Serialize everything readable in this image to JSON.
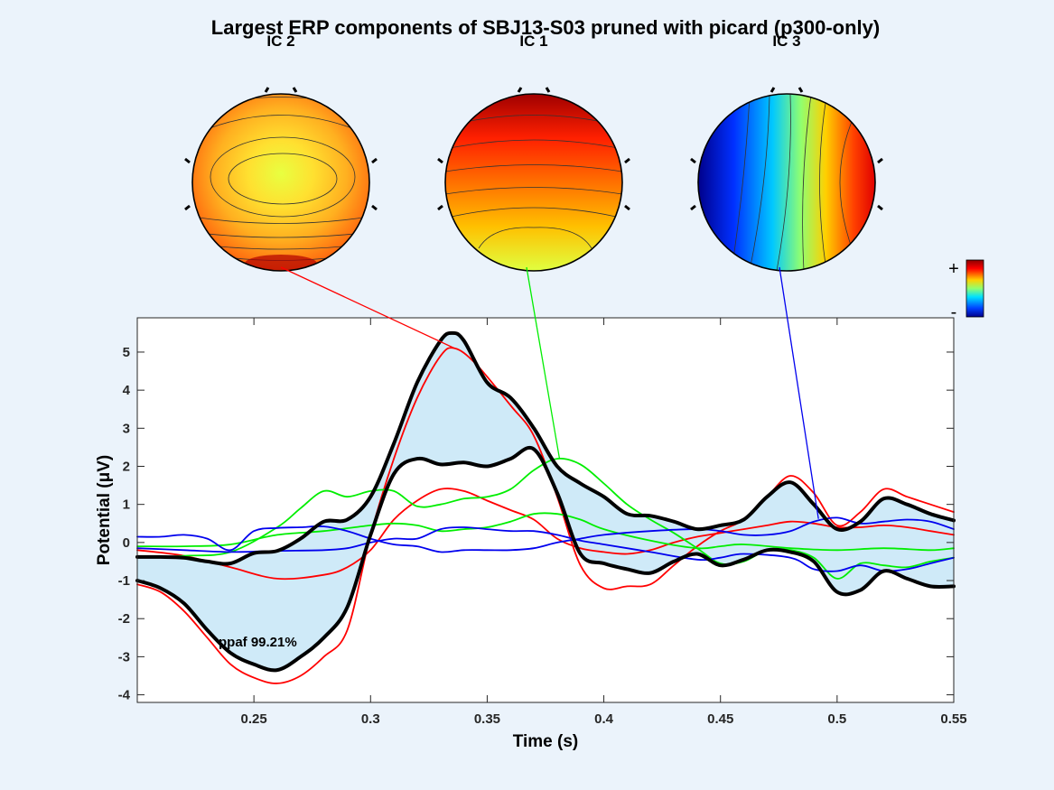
{
  "chart_data": {
    "type": "line",
    "title": "Largest ERP components of SBJ13-S03 pruned with picard (p300-only)",
    "xlabel": "Time (s)",
    "ylabel": "Potential (μV)",
    "xlim": [
      0.2,
      0.55
    ],
    "ylim": [
      -4.2,
      5.9
    ],
    "x_ticks": [
      0.25,
      0.3,
      0.35,
      0.4,
      0.45,
      0.5,
      0.55
    ],
    "y_ticks": [
      -4,
      -3,
      -2,
      -1,
      0,
      1,
      2,
      3,
      4,
      5
    ],
    "grid": false,
    "annotation": "ppaf 99.21%",
    "colorbar_labels": {
      "plus": "+",
      "minus": "-"
    },
    "components": [
      {
        "label": "IC 2",
        "color": "#ff0000",
        "topo": "frontal-warm",
        "link_to": [
          0.336,
          5.1
        ]
      },
      {
        "label": "IC 1",
        "color": "#00ee00",
        "topo": "frontal-red-posterior-yellow",
        "link_to": [
          0.381,
          2.2
        ]
      },
      {
        "label": "IC 3",
        "color": "#0000ee",
        "topo": "left-blue-right-red",
        "link_to": [
          0.492,
          0.62
        ]
      }
    ],
    "series": [
      {
        "role": "envelope-upper",
        "color": "#000000",
        "x": [
          0.2,
          0.21,
          0.22,
          0.23,
          0.24,
          0.25,
          0.26,
          0.27,
          0.28,
          0.29,
          0.3,
          0.31,
          0.32,
          0.33,
          0.335,
          0.34,
          0.35,
          0.36,
          0.37,
          0.38,
          0.39,
          0.4,
          0.41,
          0.42,
          0.43,
          0.44,
          0.45,
          0.46,
          0.47,
          0.48,
          0.49,
          0.5,
          0.51,
          0.52,
          0.53,
          0.54,
          0.55
        ],
        "values": [
          -0.38,
          -0.38,
          -0.4,
          -0.5,
          -0.55,
          -0.28,
          -0.22,
          0.1,
          0.55,
          0.6,
          1.2,
          2.6,
          4.2,
          5.3,
          5.5,
          5.3,
          4.2,
          3.8,
          3.0,
          2.0,
          1.55,
          1.2,
          0.75,
          0.7,
          0.55,
          0.35,
          0.45,
          0.6,
          1.2,
          1.58,
          1.0,
          0.35,
          0.55,
          1.15,
          1.0,
          0.75,
          0.58
        ]
      },
      {
        "role": "envelope-lower",
        "color": "#000000",
        "x": [
          0.2,
          0.21,
          0.22,
          0.23,
          0.24,
          0.25,
          0.26,
          0.27,
          0.28,
          0.29,
          0.3,
          0.31,
          0.32,
          0.33,
          0.34,
          0.35,
          0.36,
          0.37,
          0.38,
          0.39,
          0.4,
          0.41,
          0.42,
          0.43,
          0.44,
          0.45,
          0.46,
          0.47,
          0.48,
          0.49,
          0.5,
          0.51,
          0.52,
          0.53,
          0.54,
          0.55
        ],
        "values": [
          -1.0,
          -1.2,
          -1.6,
          -2.3,
          -2.9,
          -3.2,
          -3.35,
          -3.0,
          -2.5,
          -1.7,
          0.2,
          1.8,
          2.2,
          2.05,
          2.1,
          2.0,
          2.2,
          2.45,
          1.3,
          -0.3,
          -0.55,
          -0.7,
          -0.8,
          -0.5,
          -0.3,
          -0.6,
          -0.45,
          -0.2,
          -0.25,
          -0.5,
          -1.3,
          -1.25,
          -0.75,
          -0.95,
          -1.15,
          -1.15
        ]
      },
      {
        "name": "IC 2",
        "color": "#ff0000",
        "x": [
          0.2,
          0.21,
          0.22,
          0.23,
          0.24,
          0.25,
          0.26,
          0.27,
          0.28,
          0.29,
          0.3,
          0.31,
          0.32,
          0.33,
          0.336,
          0.345,
          0.36,
          0.37,
          0.38,
          0.39,
          0.4,
          0.41,
          0.42,
          0.43,
          0.44,
          0.45,
          0.46,
          0.47,
          0.48,
          0.49,
          0.5,
          0.51,
          0.52,
          0.53,
          0.54,
          0.55
        ],
        "values": [
          -1.1,
          -1.3,
          -1.8,
          -2.5,
          -3.2,
          -3.55,
          -3.7,
          -3.5,
          -3.0,
          -2.3,
          0.2,
          2.2,
          3.8,
          4.9,
          5.1,
          4.7,
          3.6,
          2.8,
          1.2,
          -0.6,
          -1.2,
          -1.15,
          -1.1,
          -0.6,
          -0.1,
          0.3,
          0.6,
          1.2,
          1.75,
          1.3,
          0.45,
          0.8,
          1.4,
          1.2,
          1.0,
          0.8
        ]
      },
      {
        "name": "IC 2 (second trace)",
        "color": "#ff0000",
        "x": [
          0.2,
          0.22,
          0.24,
          0.26,
          0.28,
          0.29,
          0.3,
          0.31,
          0.32,
          0.33,
          0.34,
          0.35,
          0.36,
          0.37,
          0.38,
          0.39,
          0.4,
          0.41,
          0.42,
          0.43,
          0.44,
          0.45,
          0.46,
          0.47,
          0.48,
          0.49,
          0.5,
          0.51,
          0.52,
          0.53,
          0.54,
          0.55
        ],
        "values": [
          -0.2,
          -0.35,
          -0.65,
          -0.95,
          -0.85,
          -0.65,
          -0.2,
          0.6,
          1.1,
          1.4,
          1.35,
          1.1,
          0.85,
          0.6,
          0.1,
          -0.15,
          -0.25,
          -0.3,
          -0.2,
          0.0,
          0.15,
          0.25,
          0.35,
          0.45,
          0.55,
          0.5,
          0.4,
          0.4,
          0.45,
          0.4,
          0.3,
          0.2
        ]
      },
      {
        "name": "IC 1",
        "color": "#00ee00",
        "x": [
          0.2,
          0.22,
          0.24,
          0.26,
          0.27,
          0.28,
          0.29,
          0.3,
          0.31,
          0.32,
          0.33,
          0.34,
          0.35,
          0.36,
          0.37,
          0.38,
          0.39,
          0.4,
          0.41,
          0.42,
          0.43,
          0.44,
          0.45,
          0.46,
          0.47,
          0.48,
          0.49,
          0.5,
          0.51,
          0.52,
          0.53,
          0.54,
          0.55
        ],
        "values": [
          -0.4,
          -0.35,
          -0.25,
          0.4,
          0.9,
          1.35,
          1.2,
          1.35,
          1.35,
          0.95,
          1.0,
          1.15,
          1.2,
          1.4,
          1.9,
          2.2,
          2.05,
          1.55,
          1.0,
          0.6,
          0.25,
          -0.15,
          -0.55,
          -0.5,
          -0.2,
          -0.2,
          -0.4,
          -0.95,
          -0.55,
          -0.6,
          -0.65,
          -0.5,
          -0.4
        ]
      },
      {
        "name": "IC 1 (second trace)",
        "color": "#00ee00",
        "x": [
          0.2,
          0.22,
          0.24,
          0.26,
          0.28,
          0.3,
          0.31,
          0.32,
          0.33,
          0.34,
          0.35,
          0.36,
          0.37,
          0.38,
          0.39,
          0.4,
          0.42,
          0.44,
          0.45,
          0.46,
          0.48,
          0.5,
          0.52,
          0.54,
          0.55
        ],
        "values": [
          -0.1,
          -0.1,
          -0.05,
          0.2,
          0.3,
          0.45,
          0.5,
          0.45,
          0.3,
          0.35,
          0.4,
          0.55,
          0.75,
          0.75,
          0.6,
          0.35,
          0.05,
          -0.15,
          -0.1,
          -0.05,
          -0.15,
          -0.2,
          -0.15,
          -0.2,
          -0.15
        ]
      },
      {
        "name": "IC 3",
        "color": "#0000ee",
        "x": [
          0.2,
          0.21,
          0.22,
          0.23,
          0.24,
          0.25,
          0.26,
          0.27,
          0.28,
          0.29,
          0.3,
          0.31,
          0.32,
          0.33,
          0.34,
          0.35,
          0.36,
          0.37,
          0.38,
          0.39,
          0.4,
          0.42,
          0.44,
          0.45,
          0.46,
          0.47,
          0.48,
          0.49,
          0.5,
          0.51,
          0.52,
          0.53,
          0.54,
          0.55
        ],
        "values": [
          0.15,
          0.15,
          0.2,
          0.1,
          -0.2,
          0.3,
          0.38,
          0.4,
          0.42,
          0.3,
          0.1,
          -0.05,
          -0.1,
          -0.25,
          -0.2,
          -0.2,
          -0.2,
          -0.15,
          0.0,
          0.1,
          0.2,
          0.3,
          0.35,
          0.3,
          0.2,
          0.2,
          0.3,
          0.55,
          0.65,
          0.5,
          0.55,
          0.6,
          0.55,
          0.35
        ]
      },
      {
        "name": "IC 3 (second trace)",
        "color": "#0000ee",
        "x": [
          0.2,
          0.22,
          0.24,
          0.26,
          0.28,
          0.29,
          0.3,
          0.31,
          0.32,
          0.33,
          0.34,
          0.35,
          0.36,
          0.37,
          0.38,
          0.39,
          0.4,
          0.42,
          0.44,
          0.45,
          0.46,
          0.48,
          0.49,
          0.5,
          0.51,
          0.52,
          0.53,
          0.54,
          0.55
        ],
        "values": [
          -0.15,
          -0.2,
          -0.25,
          -0.22,
          -0.2,
          -0.15,
          0.0,
          0.1,
          0.1,
          0.35,
          0.4,
          0.35,
          0.3,
          0.3,
          0.2,
          0.05,
          -0.05,
          -0.25,
          -0.45,
          -0.4,
          -0.3,
          -0.4,
          -0.7,
          -0.75,
          -0.6,
          -0.75,
          -0.7,
          -0.55,
          -0.4
        ]
      }
    ]
  }
}
